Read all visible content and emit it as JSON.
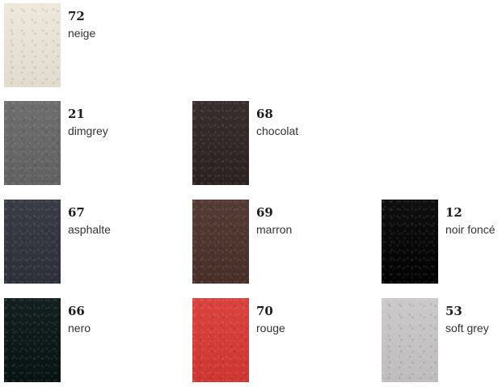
{
  "swatches": [
    {
      "code": "72",
      "name": "neige",
      "color": "#ede7d9"
    },
    {
      "code": "21",
      "name": "dimgrey",
      "color": "#666666"
    },
    {
      "code": "68",
      "name": "chocolat",
      "color": "#2d2322"
    },
    {
      "code": "67",
      "name": "asphalte",
      "color": "#2f323b"
    },
    {
      "code": "69",
      "name": "marron",
      "color": "#4b3129"
    },
    {
      "code": "12",
      "name": "noir foncé",
      "color": "#020202"
    },
    {
      "code": "66",
      "name": "nero",
      "color": "#071413"
    },
    {
      "code": "70",
      "name": "rouge",
      "color": "#d93834"
    },
    {
      "code": "53",
      "name": "soft grey",
      "color": "#c8c6c7"
    }
  ]
}
